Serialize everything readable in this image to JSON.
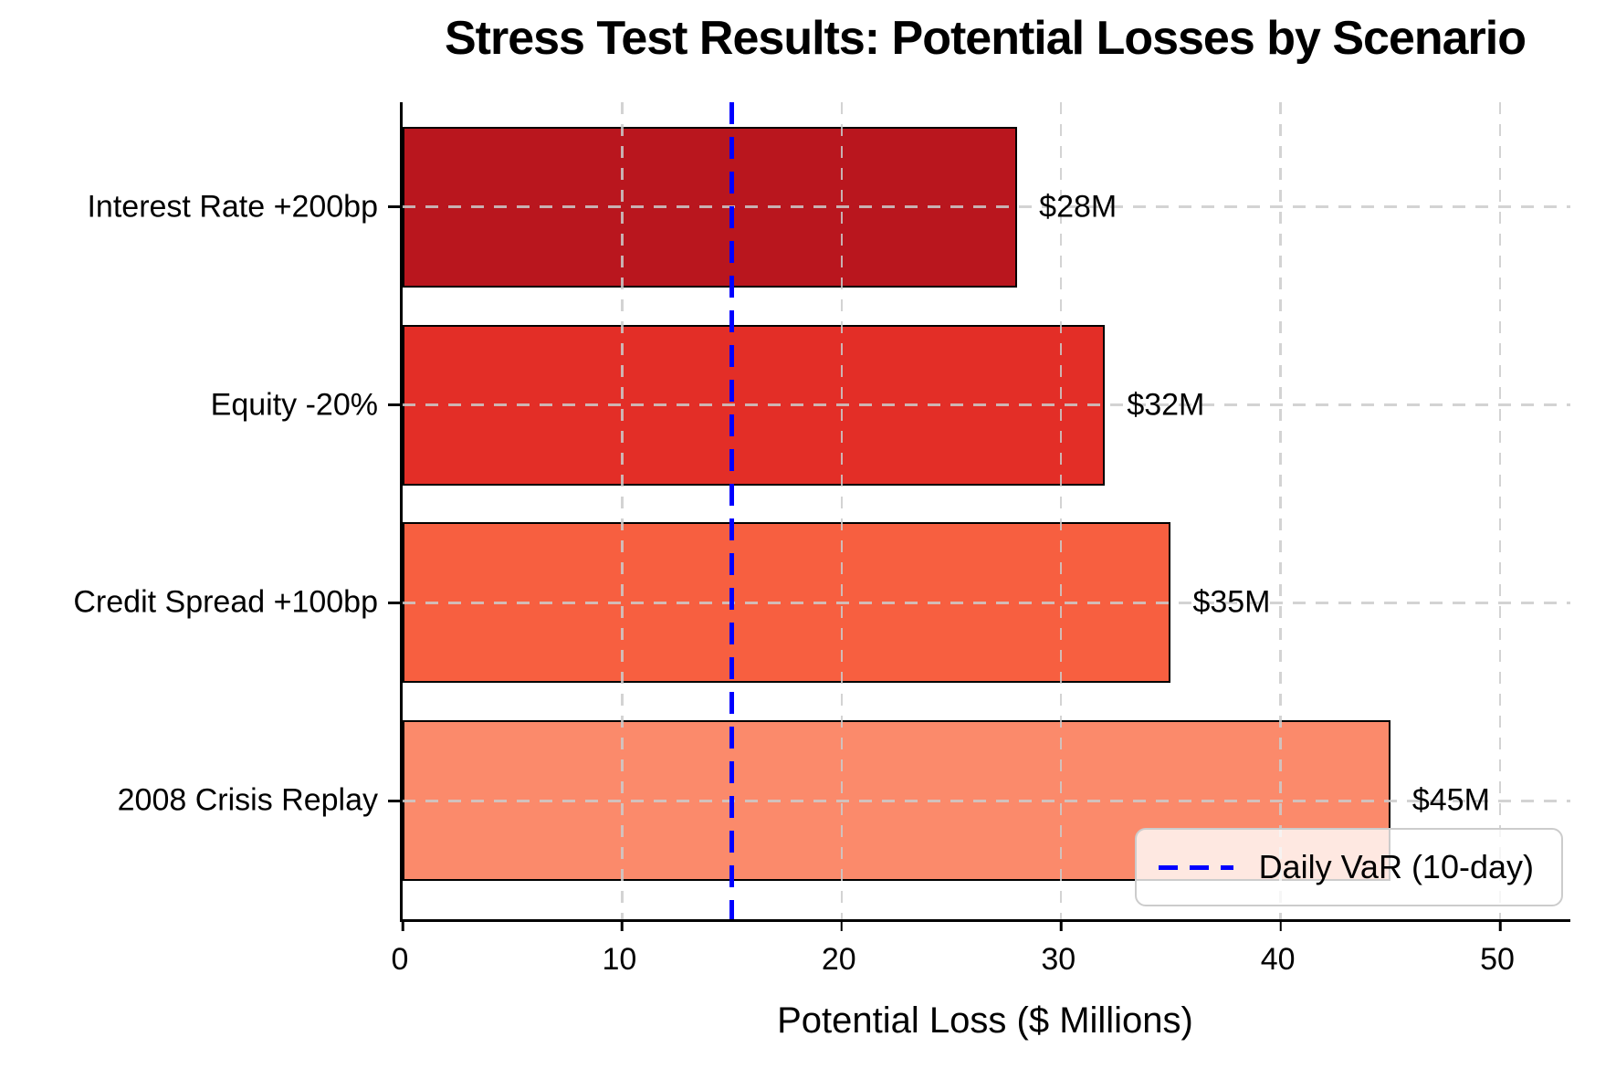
{
  "chart": {
    "title": "Stress Test Results: Potential Losses by Scenario",
    "xlabel": "Potential Loss ($ Millions)"
  },
  "chart_data": {
    "type": "bar",
    "orientation": "horizontal",
    "title": "Stress Test Results: Potential Losses by Scenario",
    "xlabel": "Potential Loss ($ Millions)",
    "ylabel": "",
    "categories": [
      "Interest Rate +200bp",
      "Equity -20%",
      "Credit Spread +100bp",
      "2008 Crisis Replay"
    ],
    "values": [
      28,
      32,
      35,
      45
    ],
    "value_labels": [
      "$28M",
      "$32M",
      "$35M",
      "$45M"
    ],
    "bar_colors": [
      "#B9161E",
      "#E32E27",
      "#F75F40",
      "#FB8A6B"
    ],
    "bar_edge_color": "#000000",
    "xticks": [
      0,
      10,
      20,
      30,
      40,
      50
    ],
    "xlim": [
      0,
      53.2
    ],
    "grid": true,
    "grid_style": "dashed",
    "reference_line": {
      "value": 15,
      "color": "#0000FF",
      "style": "dashed",
      "label": "Daily VaR (10-day)"
    },
    "legend": {
      "position": "lower right",
      "entries": [
        {
          "label": "Daily VaR (10-day)",
          "color": "#0000FF",
          "style": "dashed"
        }
      ]
    }
  }
}
